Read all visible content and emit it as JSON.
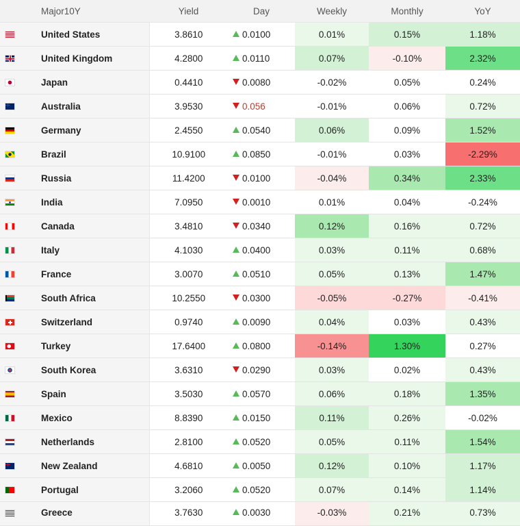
{
  "headers": {
    "name": "Major10Y",
    "yield": "Yield",
    "day": "Day",
    "weekly": "Weekly",
    "monthly": "Monthly",
    "yoy": "YoY"
  },
  "colors": {
    "up_arrow": "#57b957",
    "down_arrow": "#d02121",
    "zero": "#ffffff",
    "pos1": "#eaf8ea",
    "pos2": "#d3f2d5",
    "pos3": "#a9e9b0",
    "pos4": "#6ddf87",
    "pos5": "#33d35c",
    "neg1": "#fcecec",
    "neg2": "#fdd9d9",
    "neg3": "#f89191",
    "neg4": "#f86f6f"
  },
  "rows": [
    {
      "flag": "us",
      "name": "United States",
      "yield": "3.8610",
      "dir": "up",
      "day": "0.0100",
      "weekly": "0.01%",
      "monthly": "0.15%",
      "yoy": "1.18%",
      "wk": "pos1",
      "mo": "pos2",
      "yy": "pos2"
    },
    {
      "flag": "gb",
      "name": "United Kingdom",
      "yield": "4.2800",
      "dir": "up",
      "day": "0.0110",
      "weekly": "0.07%",
      "monthly": "-0.10%",
      "yoy": "2.32%",
      "wk": "pos2",
      "mo": "neg1",
      "yy": "pos4"
    },
    {
      "flag": "jp",
      "name": "Japan",
      "yield": "0.4410",
      "dir": "down",
      "day": "0.0080",
      "weekly": "-0.02%",
      "monthly": "0.05%",
      "yoy": "0.24%",
      "wk": "zero",
      "mo": "zero",
      "yy": "zero"
    },
    {
      "flag": "au",
      "name": "Australia",
      "yield": "3.9530",
      "dir": "down",
      "day": "0.056",
      "weekly": "-0.01%",
      "monthly": "0.06%",
      "yoy": "0.72%",
      "wk": "zero",
      "mo": "zero",
      "yy": "pos1",
      "neg_text": true
    },
    {
      "flag": "de",
      "name": "Germany",
      "yield": "2.4550",
      "dir": "up",
      "day": "0.0540",
      "weekly": "0.06%",
      "monthly": "0.09%",
      "yoy": "1.52%",
      "wk": "pos2",
      "mo": "zero",
      "yy": "pos3"
    },
    {
      "flag": "br",
      "name": "Brazil",
      "yield": "10.9100",
      "dir": "up",
      "day": "0.0850",
      "weekly": "-0.01%",
      "monthly": "0.03%",
      "yoy": "-2.29%",
      "wk": "zero",
      "mo": "zero",
      "yy": "neg4"
    },
    {
      "flag": "ru",
      "name": "Russia",
      "yield": "11.4200",
      "dir": "down",
      "day": "0.0100",
      "weekly": "-0.04%",
      "monthly": "0.34%",
      "yoy": "2.33%",
      "wk": "neg1",
      "mo": "pos3",
      "yy": "pos4"
    },
    {
      "flag": "in",
      "name": "India",
      "yield": "7.0950",
      "dir": "down",
      "day": "0.0010",
      "weekly": "0.01%",
      "monthly": "0.04%",
      "yoy": "-0.24%",
      "wk": "zero",
      "mo": "zero",
      "yy": "zero"
    },
    {
      "flag": "ca",
      "name": "Canada",
      "yield": "3.4810",
      "dir": "down",
      "day": "0.0340",
      "weekly": "0.12%",
      "monthly": "0.16%",
      "yoy": "0.72%",
      "wk": "pos3",
      "mo": "pos1",
      "yy": "pos1"
    },
    {
      "flag": "it",
      "name": "Italy",
      "yield": "4.1030",
      "dir": "up",
      "day": "0.0400",
      "weekly": "0.03%",
      "monthly": "0.11%",
      "yoy": "0.68%",
      "wk": "pos1",
      "mo": "pos1",
      "yy": "pos1"
    },
    {
      "flag": "fr",
      "name": "France",
      "yield": "3.0070",
      "dir": "up",
      "day": "0.0510",
      "weekly": "0.05%",
      "monthly": "0.13%",
      "yoy": "1.47%",
      "wk": "pos1",
      "mo": "pos1",
      "yy": "pos3"
    },
    {
      "flag": "za",
      "name": "South Africa",
      "yield": "10.2550",
      "dir": "down",
      "day": "0.0300",
      "weekly": "-0.05%",
      "monthly": "-0.27%",
      "yoy": "-0.41%",
      "wk": "neg2",
      "mo": "neg2",
      "yy": "neg1"
    },
    {
      "flag": "ch",
      "name": "Switzerland",
      "yield": "0.9740",
      "dir": "up",
      "day": "0.0090",
      "weekly": "0.04%",
      "monthly": "0.03%",
      "yoy": "0.43%",
      "wk": "pos1",
      "mo": "zero",
      "yy": "pos1"
    },
    {
      "flag": "tr",
      "name": "Turkey",
      "yield": "17.6400",
      "dir": "up",
      "day": "0.0800",
      "weekly": "-0.14%",
      "monthly": "1.30%",
      "yoy": "0.27%",
      "wk": "neg3",
      "mo": "pos5",
      "yy": "zero"
    },
    {
      "flag": "kr",
      "name": "South Korea",
      "yield": "3.6310",
      "dir": "down",
      "day": "0.0290",
      "weekly": "0.03%",
      "monthly": "0.02%",
      "yoy": "0.43%",
      "wk": "pos1",
      "mo": "zero",
      "yy": "pos1"
    },
    {
      "flag": "es",
      "name": "Spain",
      "yield": "3.5030",
      "dir": "up",
      "day": "0.0570",
      "weekly": "0.06%",
      "monthly": "0.18%",
      "yoy": "1.35%",
      "wk": "pos1",
      "mo": "pos1",
      "yy": "pos3"
    },
    {
      "flag": "mx",
      "name": "Mexico",
      "yield": "8.8390",
      "dir": "up",
      "day": "0.0150",
      "weekly": "0.11%",
      "monthly": "0.26%",
      "yoy": "-0.02%",
      "wk": "pos2",
      "mo": "pos1",
      "yy": "zero"
    },
    {
      "flag": "nl",
      "name": "Netherlands",
      "yield": "2.8100",
      "dir": "up",
      "day": "0.0520",
      "weekly": "0.05%",
      "monthly": "0.11%",
      "yoy": "1.54%",
      "wk": "pos1",
      "mo": "pos1",
      "yy": "pos3"
    },
    {
      "flag": "nz",
      "name": "New Zealand",
      "yield": "4.6810",
      "dir": "up",
      "day": "0.0050",
      "weekly": "0.12%",
      "monthly": "0.10%",
      "yoy": "1.17%",
      "wk": "pos2",
      "mo": "pos1",
      "yy": "pos2"
    },
    {
      "flag": "pt",
      "name": "Portugal",
      "yield": "3.2060",
      "dir": "up",
      "day": "0.0520",
      "weekly": "0.07%",
      "monthly": "0.14%",
      "yoy": "1.14%",
      "wk": "pos1",
      "mo": "pos1",
      "yy": "pos2"
    },
    {
      "flag": "gr",
      "name": "Greece",
      "yield": "3.7630",
      "dir": "up",
      "day": "0.0030",
      "weekly": "-0.03%",
      "monthly": "0.21%",
      "yoy": "0.73%",
      "wk": "neg1",
      "mo": "pos1",
      "yy": "pos1"
    }
  ]
}
